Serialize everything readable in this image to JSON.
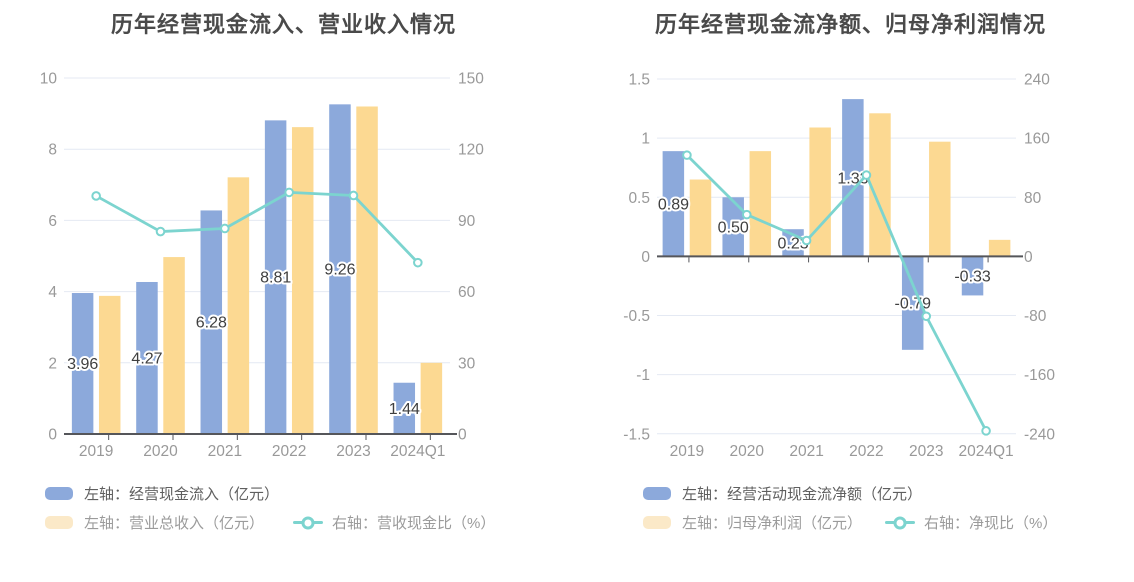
{
  "page": {
    "background": "#ffffff"
  },
  "chart_data": [
    {
      "type": "bar",
      "title": "历年经营现金流入、营业收入情况",
      "categories": [
        "2019",
        "2020",
        "2021",
        "2022",
        "2023",
        "2024Q1"
      ],
      "left_axis": {
        "min": 0,
        "max": 10,
        "ticks": [
          0,
          2,
          4,
          6,
          8,
          10
        ],
        "labels": [
          "0",
          "2",
          "4",
          "6",
          "8",
          "10"
        ]
      },
      "right_axis": {
        "min": 0,
        "max": 150,
        "ticks": [
          0,
          30,
          60,
          90,
          120,
          150
        ],
        "labels": [
          "0",
          "30",
          "60",
          "90",
          "120",
          "150"
        ]
      },
      "series": [
        {
          "type": "bar",
          "name": "左轴：经营现金流入（亿元）",
          "color": "#8ca9db",
          "legend_color": "#8ca9db",
          "values": [
            3.96,
            4.27,
            6.28,
            8.81,
            9.26,
            1.44
          ],
          "labels": [
            "3.96",
            "4.27",
            "6.28",
            "8.81",
            "9.26",
            "1.44"
          ]
        },
        {
          "type": "bar",
          "name": "左轴：营业总收入（亿元）",
          "color": "#fcd992",
          "legend_color": "#fbe9c8",
          "values": [
            3.88,
            4.97,
            7.21,
            8.62,
            9.2,
            2.0
          ]
        },
        {
          "type": "line",
          "name": "右轴：营收现金比（%）",
          "color": "#7cd4cf",
          "values": [
            100.3,
            85.3,
            86.6,
            101.8,
            100.5,
            72.2
          ]
        }
      ],
      "grid": true,
      "legend_position": "bottom"
    },
    {
      "type": "bar",
      "title": "历年经营现金流净额、归母净利润情况",
      "categories": [
        "2019",
        "2020",
        "2021",
        "2022",
        "2023",
        "2024Q1"
      ],
      "left_axis": {
        "min": -1.5,
        "max": 1.5,
        "ticks": [
          -1.5,
          -1,
          -0.5,
          0,
          0.5,
          1,
          1.5
        ],
        "labels": [
          "-1.5",
          "-1",
          "-0.5",
          "0",
          "0.5",
          "1",
          "1.5"
        ]
      },
      "right_axis": {
        "min": -240,
        "max": 240,
        "ticks": [
          -240,
          -160,
          -80,
          0,
          80,
          160,
          240
        ],
        "labels": [
          "-240",
          "-160",
          "-80",
          "0",
          "80",
          "160",
          "240"
        ]
      },
      "series": [
        {
          "type": "bar",
          "name": "左轴：经营活动现金流净额（亿元）",
          "color": "#8ca9db",
          "legend_color": "#8ca9db",
          "values": [
            0.89,
            0.5,
            0.23,
            1.33,
            -0.79,
            -0.33
          ],
          "labels": [
            "0.89",
            "0.50",
            "0.23",
            "1.33",
            "-0.79",
            "-0.33"
          ]
        },
        {
          "type": "bar",
          "name": "左轴：归母净利润（亿元）",
          "color": "#fcd992",
          "legend_color": "#fbe9c8",
          "values": [
            0.65,
            0.89,
            1.09,
            1.21,
            0.97,
            0.14
          ]
        },
        {
          "type": "line",
          "name": "右轴：净现比（%）",
          "color": "#7cd4cf",
          "values": [
            137,
            56.5,
            21.5,
            110,
            -81,
            -236
          ]
        }
      ],
      "grid": true,
      "legend_position": "bottom"
    }
  ],
  "style": {
    "grid_color": "#e4e9f3",
    "axis_color": "#55565a",
    "tick_label_color": "#999999",
    "title_color": "#4a4a4a",
    "data_label_color": "#3f3f3f"
  }
}
